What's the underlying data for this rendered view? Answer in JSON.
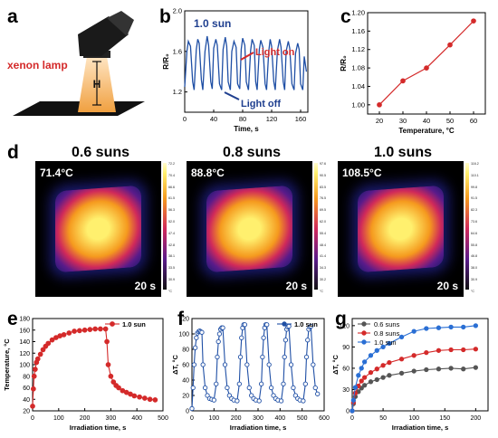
{
  "panel_labels": {
    "a": "a",
    "b": "b",
    "c": "c",
    "d": "d",
    "e": "e",
    "f": "f",
    "g": "g"
  },
  "panel_a": {
    "lamp_label": "xenon lamp",
    "height_label": "H"
  },
  "panel_d": {
    "images": [
      {
        "title": "0.6 suns",
        "max_temp": "71.4°C",
        "time": "20 s",
        "scale_ticks": [
          "72.2",
          "70.4",
          "66.6",
          "61.5",
          "56.3",
          "52.0",
          "47.4",
          "42.8",
          "38.1",
          "33.5",
          "30.9",
          "°C"
        ]
      },
      {
        "title": "0.8 suns",
        "max_temp": "88.8°C",
        "time": "20 s",
        "scale_ticks": [
          "97.6",
          "90.5",
          "83.5",
          "76.5",
          "69.5",
          "62.0",
          "55.4",
          "48.4",
          "41.4",
          "34.3",
          "30.2",
          "°C"
        ]
      },
      {
        "title": "1.0 suns",
        "max_temp": "108.5°C",
        "time": "20 s",
        "scale_ticks": [
          "116.2",
          "110.1",
          "99.8",
          "91.5",
          "82.3",
          "73.6",
          "64.6",
          "55.8",
          "46.8",
          "38.0",
          "30.9",
          "°C"
        ]
      }
    ],
    "colors": {
      "hot": "#fff06e",
      "warm": "#f59a1e",
      "mid": "#d0295a",
      "cool": "#5a1b8a",
      "cold": "#1a1a6e"
    }
  },
  "chart_data": [
    {
      "panel": "b",
      "type": "line",
      "annotation": "1.0 sun",
      "note_on": "Light on",
      "note_off": "Light off",
      "xlabel": "Time, s",
      "ylabel": "R/R₀",
      "xlim": [
        0,
        170
      ],
      "ylim": [
        1.0,
        2.0
      ],
      "xticks": [
        0,
        40,
        80,
        120,
        160
      ],
      "yticks": [
        1.2,
        1.6,
        2.0
      ],
      "color": "#1f4fa5",
      "x": [
        0,
        3,
        5,
        8,
        11,
        13,
        16,
        18,
        20,
        23,
        25,
        28,
        31,
        33,
        36,
        38,
        40,
        43,
        45,
        48,
        51,
        53,
        56,
        58,
        60,
        63,
        65,
        68,
        71,
        73,
        76,
        78,
        80,
        83,
        85,
        88,
        91,
        93,
        96,
        98,
        100,
        103,
        105,
        108,
        111,
        113,
        116,
        118,
        120,
        123,
        125,
        128,
        131,
        133,
        136,
        138,
        140,
        143,
        145,
        148,
        151,
        153,
        156,
        158,
        160,
        163,
        165,
        168
      ],
      "y": [
        1.25,
        1.6,
        1.7,
        1.65,
        1.3,
        1.22,
        1.62,
        1.72,
        1.68,
        1.32,
        1.22,
        1.6,
        1.75,
        1.66,
        1.3,
        1.23,
        1.63,
        1.72,
        1.66,
        1.28,
        1.22,
        1.62,
        1.74,
        1.65,
        1.3,
        1.22,
        1.6,
        1.7,
        1.64,
        1.28,
        1.23,
        1.62,
        1.73,
        1.66,
        1.3,
        1.22,
        1.61,
        1.72,
        1.66,
        1.3,
        1.22,
        1.62,
        1.71,
        1.64,
        1.28,
        1.22,
        1.6,
        1.72,
        1.65,
        1.3,
        1.22,
        1.61,
        1.72,
        1.64,
        1.3,
        1.22,
        1.6,
        1.7,
        1.63,
        1.28,
        1.22,
        1.58,
        1.68,
        1.62,
        1.28,
        1.22,
        1.55,
        1.4
      ]
    },
    {
      "panel": "c",
      "type": "line",
      "xlabel": "Temperature, °C",
      "ylabel": "R/R₀",
      "xlim": [
        15,
        65
      ],
      "ylim": [
        0.98,
        1.2
      ],
      "xticks": [
        20,
        30,
        40,
        50,
        60
      ],
      "yticks": [
        1.0,
        1.04,
        1.08,
        1.12,
        1.16,
        1.2
      ],
      "color": "#d42a2a",
      "x": [
        20,
        30,
        40,
        50,
        60
      ],
      "y": [
        1.0,
        1.052,
        1.08,
        1.13,
        1.182
      ]
    },
    {
      "panel": "e",
      "type": "line",
      "xlabel": "Irradiation time, s",
      "ylabel": "Temperature, °C",
      "xlim": [
        0,
        500
      ],
      "ylim": [
        20,
        180
      ],
      "xticks": [
        0,
        100,
        200,
        300,
        400,
        500
      ],
      "yticks": [
        20,
        40,
        60,
        80,
        100,
        120,
        140,
        160,
        180
      ],
      "legend": "1.0 sun",
      "color": "#d42a2a",
      "x": [
        0,
        3,
        6,
        10,
        15,
        20,
        30,
        40,
        50,
        60,
        75,
        90,
        105,
        120,
        140,
        160,
        180,
        200,
        220,
        240,
        260,
        280,
        285,
        290,
        300,
        310,
        320,
        330,
        345,
        360,
        375,
        390,
        410,
        430,
        450,
        470
      ],
      "y": [
        28,
        58,
        80,
        92,
        104,
        110,
        118,
        126,
        132,
        137,
        143,
        147,
        150,
        152,
        155,
        158,
        159,
        160,
        161,
        162,
        162,
        162,
        140,
        100,
        80,
        70,
        64,
        60,
        55,
        52,
        49,
        46,
        44,
        42,
        40,
        39
      ]
    },
    {
      "panel": "f",
      "type": "line",
      "xlabel": "Irradiation time, s",
      "ylabel": "ΔT, °C",
      "xlim": [
        0,
        600
      ],
      "ylim": [
        0,
        120
      ],
      "xticks": [
        0,
        100,
        200,
        300,
        400,
        500,
        600
      ],
      "yticks": [
        0,
        20,
        40,
        60,
        80,
        100,
        120
      ],
      "legend": "1.0 sun",
      "color": "#1f4fa5",
      "x": [
        0,
        5,
        10,
        15,
        20,
        25,
        30,
        35,
        40,
        45,
        50,
        60,
        70,
        80,
        90,
        100,
        110,
        115,
        120,
        125,
        130,
        135,
        140,
        150,
        160,
        170,
        180,
        190,
        205,
        215,
        220,
        225,
        230,
        235,
        240,
        250,
        260,
        270,
        280,
        290,
        305,
        315,
        320,
        325,
        330,
        335,
        340,
        350,
        360,
        370,
        380,
        390,
        405,
        415,
        420,
        425,
        430,
        435,
        440,
        450,
        460,
        470,
        480,
        490,
        505,
        515,
        520,
        525,
        530,
        535,
        540,
        550,
        560,
        570
      ],
      "y": [
        3,
        30,
        60,
        82,
        95,
        101,
        103,
        104,
        103,
        102,
        60,
        30,
        20,
        16,
        15,
        14,
        35,
        70,
        90,
        100,
        106,
        108,
        108,
        60,
        30,
        20,
        16,
        14,
        13,
        35,
        70,
        95,
        108,
        112,
        112,
        60,
        30,
        20,
        16,
        14,
        13,
        35,
        70,
        95,
        108,
        112,
        112,
        60,
        30,
        20,
        16,
        14,
        13,
        35,
        70,
        92,
        106,
        109,
        110,
        60,
        30,
        20,
        16,
        14,
        13,
        35,
        70,
        92,
        106,
        109,
        110,
        60,
        30,
        22
      ]
    },
    {
      "panel": "g",
      "type": "line",
      "xlabel": "Irradiation time, s",
      "ylabel": "ΔT, °C",
      "xlim": [
        0,
        220
      ],
      "ylim": [
        0,
        130
      ],
      "xticks": [
        0,
        50,
        100,
        150,
        200
      ],
      "yticks": [
        0,
        30,
        60,
        90,
        120
      ],
      "series": [
        {
          "name": "0.6 suns",
          "color": "#555555",
          "x": [
            0,
            2,
            5,
            10,
            15,
            20,
            30,
            40,
            50,
            60,
            80,
            100,
            120,
            140,
            160,
            180,
            200
          ],
          "y": [
            0,
            10,
            20,
            27,
            32,
            36,
            41,
            44,
            47,
            50,
            53,
            56,
            58,
            59,
            60,
            59,
            61
          ]
        },
        {
          "name": "0.8 suns",
          "color": "#d42a2a",
          "x": [
            0,
            2,
            5,
            10,
            15,
            20,
            30,
            40,
            50,
            60,
            80,
            100,
            120,
            140,
            160,
            180,
            200
          ],
          "y": [
            0,
            12,
            25,
            35,
            42,
            47,
            54,
            59,
            64,
            68,
            73,
            78,
            82,
            85,
            86,
            86,
            87
          ]
        },
        {
          "name": "1.0 sun",
          "color": "#2a6fd4",
          "x": [
            0,
            2,
            5,
            10,
            15,
            20,
            30,
            40,
            50,
            60,
            80,
            100,
            120,
            140,
            160,
            180,
            200
          ],
          "y": [
            0,
            15,
            33,
            50,
            60,
            69,
            78,
            85,
            90,
            95,
            104,
            112,
            116,
            117,
            118,
            118,
            120
          ]
        }
      ]
    }
  ]
}
